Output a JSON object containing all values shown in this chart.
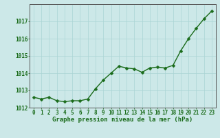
{
  "x": [
    0,
    1,
    2,
    3,
    4,
    5,
    6,
    7,
    8,
    9,
    10,
    11,
    12,
    13,
    14,
    15,
    16,
    17,
    18,
    19,
    20,
    21,
    22,
    23
  ],
  "y": [
    1012.6,
    1012.5,
    1012.6,
    1012.4,
    1012.35,
    1012.4,
    1012.4,
    1012.5,
    1013.1,
    1013.6,
    1014.0,
    1014.4,
    1014.3,
    1014.25,
    1014.05,
    1014.3,
    1014.35,
    1014.3,
    1014.45,
    1015.3,
    1016.0,
    1016.6,
    1017.15,
    1017.6
  ],
  "line_color": "#1a6b1a",
  "marker_color": "#1a6b1a",
  "bg_color": "#cce8e8",
  "grid_color": "#aad4d4",
  "xlabel": "Graphe pression niveau de la mer (hPa)",
  "xlabel_color": "#1a6b1a",
  "tick_color": "#1a6b1a",
  "ylim_min": 1012,
  "ylim_max": 1018,
  "xlim_min": -0.5,
  "xlim_max": 23.5,
  "yticks": [
    1012,
    1013,
    1014,
    1015,
    1016,
    1017
  ],
  "xticks": [
    0,
    1,
    2,
    3,
    4,
    5,
    6,
    7,
    8,
    9,
    10,
    11,
    12,
    13,
    14,
    15,
    16,
    17,
    18,
    19,
    20,
    21,
    22,
    23
  ],
  "marker_size": 2.5,
  "line_width": 1.0,
  "font_size_label": 6.5,
  "font_size_tick": 5.5
}
